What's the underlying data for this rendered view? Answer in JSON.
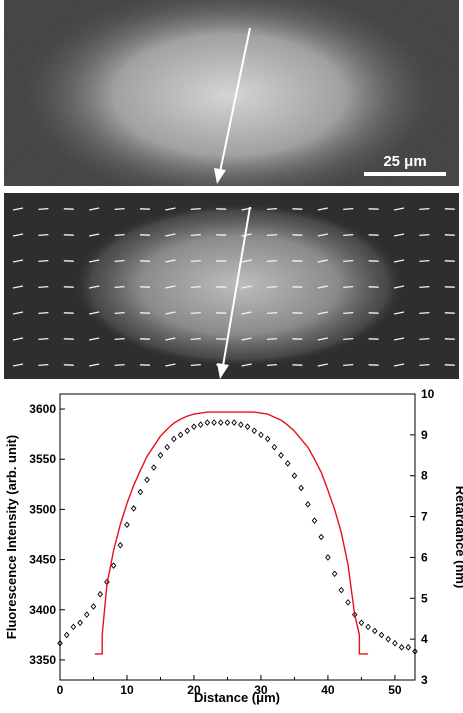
{
  "top_image": {
    "scale_bar_label": "25  μm"
  },
  "colors": {
    "profile_fit": "#e8101a",
    "markers": "#000000",
    "arrow": "#ffffff"
  },
  "chart_data": {
    "type": "scatter",
    "xlabel": "Distance (μm)",
    "ylabel_left": "Fluorescence  Intensity  (arb. unit)",
    "ylabel_right": "Retardance  (nm)",
    "xlim": [
      0,
      53
    ],
    "ylim_left": [
      3330,
      3615
    ],
    "ylim_right": [
      3,
      10
    ],
    "x_ticks": [
      "0",
      "10",
      "20",
      "30",
      "40",
      "50"
    ],
    "y_left_ticks": [
      "3350",
      "3400",
      "3450",
      "3500",
      "3550",
      "3600"
    ],
    "y_right_ticks": [
      "3",
      "4",
      "5",
      "6",
      "7",
      "8",
      "9",
      "10"
    ],
    "series": [
      {
        "name": "",
        "kind": "scatter",
        "axis": "right",
        "x": [
          0,
          1,
          2,
          3,
          4,
          5,
          6,
          7,
          8,
          9,
          10,
          11,
          12,
          13,
          14,
          15,
          16,
          17,
          18,
          19,
          20,
          21,
          22,
          23,
          24,
          25,
          26,
          27,
          28,
          29,
          30,
          31,
          32,
          33,
          34,
          35,
          36,
          37,
          38,
          39,
          40,
          41,
          42,
          43,
          44,
          45,
          46,
          47,
          48,
          49,
          50,
          51,
          52,
          53
        ],
        "y": [
          3.9,
          4.1,
          4.3,
          4.4,
          4.6,
          4.8,
          5.1,
          5.4,
          5.8,
          6.3,
          6.8,
          7.2,
          7.6,
          7.9,
          8.2,
          8.5,
          8.7,
          8.9,
          9.0,
          9.1,
          9.2,
          9.25,
          9.3,
          9.3,
          9.3,
          9.3,
          9.3,
          9.25,
          9.2,
          9.1,
          9.0,
          8.9,
          8.7,
          8.5,
          8.3,
          8.0,
          7.7,
          7.3,
          6.9,
          6.5,
          6.0,
          5.6,
          5.2,
          4.9,
          4.6,
          4.4,
          4.3,
          4.2,
          4.1,
          4.0,
          3.9,
          3.8,
          3.8,
          3.7
        ]
      },
      {
        "name": "",
        "kind": "line",
        "axis": "left",
        "x": [
          5.2,
          6.3,
          6.3,
          7,
          8,
          9,
          10,
          11,
          12,
          13,
          14,
          15,
          16,
          17,
          18,
          19,
          20,
          21,
          22,
          23,
          24,
          25,
          26,
          27,
          28,
          29,
          30,
          31,
          32,
          33,
          34,
          35,
          36,
          37,
          38,
          39,
          40,
          41,
          42,
          43,
          44,
          44.7,
          44.7,
          46
        ],
        "y": [
          3356,
          3356,
          3375,
          3425,
          3459,
          3485,
          3506,
          3524,
          3539,
          3553,
          3563,
          3573,
          3580,
          3586,
          3590,
          3593,
          3595,
          3596,
          3597,
          3597,
          3597,
          3597,
          3597,
          3597,
          3597,
          3597,
          3596,
          3595,
          3592,
          3589,
          3584,
          3578,
          3570,
          3562,
          3550,
          3537,
          3519,
          3500,
          3477,
          3445,
          3395,
          3375,
          3356,
          3356
        ]
      }
    ]
  }
}
